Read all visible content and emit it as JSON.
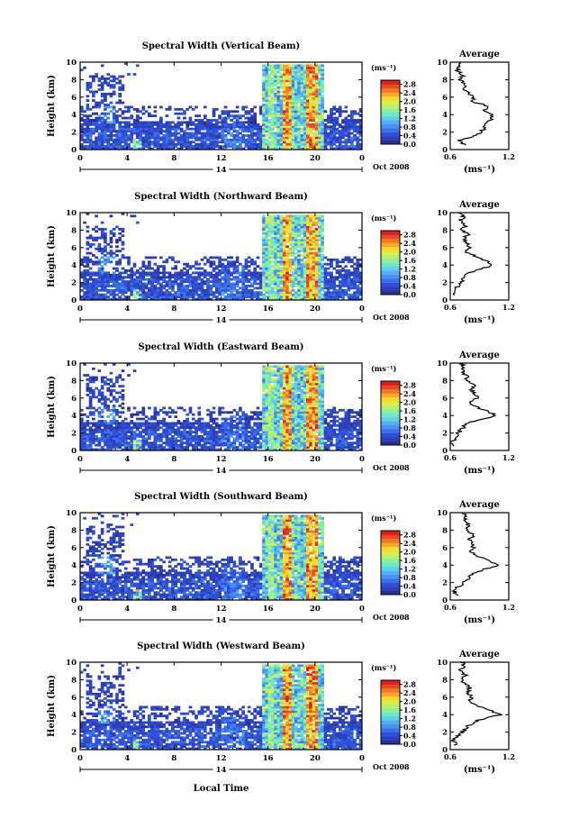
{
  "figure": {
    "date_label": "Oct 2008",
    "day_label": "14",
    "xlabel": "Local Time",
    "ylabel": "Height (km)",
    "units": "(ms⁻¹)",
    "avg_title": "Average",
    "avg_xlabel": "(ms⁻¹)"
  },
  "chart_data": [
    {
      "type": "heatmap",
      "title": "Spectral Width (Vertical Beam)",
      "x_ticks": [
        "0",
        "4",
        "8",
        "12",
        "16",
        "20",
        "0"
      ],
      "xlim": [
        0,
        24
      ],
      "y_ticks": [
        "0",
        "2",
        "4",
        "6",
        "8",
        "10"
      ],
      "ylim": [
        0,
        10
      ],
      "colorbar_ticks": [
        "0.0",
        "0.4",
        "0.8",
        "1.2",
        "1.6",
        "2.0",
        "2.4",
        "2.8"
      ],
      "colorbar_range": [
        0,
        3.0
      ],
      "colorbar_unit": "ms-1"
    },
    {
      "type": "line",
      "title": "Average",
      "x_ticks": [
        "0.6",
        "1.2"
      ],
      "xlim": [
        0.6,
        1.2
      ],
      "y_ticks": [
        "0",
        "2",
        "4",
        "6",
        "8",
        "10"
      ],
      "ylim": [
        0,
        10
      ],
      "height_km": [
        0.5,
        1,
        1.5,
        2,
        2.5,
        3,
        3.5,
        4,
        4.5,
        5,
        5.5,
        6,
        6.5,
        7,
        7.5,
        8,
        8.5,
        9,
        9.5,
        10
      ],
      "width_ms": [
        0.74,
        0.7,
        0.82,
        0.92,
        0.95,
        0.94,
        1.03,
        1.02,
        0.96,
        0.98,
        0.82,
        0.84,
        0.78,
        0.72,
        0.76,
        0.7,
        0.73,
        0.67,
        0.69,
        0.71
      ]
    },
    {
      "type": "heatmap",
      "title": "Spectral Width (Northward Beam)",
      "x_ticks": [
        "0",
        "4",
        "8",
        "12",
        "16",
        "20",
        "0"
      ],
      "xlim": [
        0,
        24
      ],
      "y_ticks": [
        "0",
        "2",
        "4",
        "6",
        "8",
        "10"
      ],
      "ylim": [
        0,
        10
      ],
      "colorbar_ticks": [
        "0.0",
        "0.4",
        "0.8",
        "1.2",
        "1.6",
        "2.0",
        "2.4",
        "2.8"
      ],
      "colorbar_range": [
        0,
        3.0
      ],
      "colorbar_unit": "ms-1"
    },
    {
      "type": "line",
      "title": "Average",
      "x_ticks": [
        "0.6",
        "1.2"
      ],
      "xlim": [
        0.6,
        1.2
      ],
      "y_ticks": [
        "0",
        "2",
        "4",
        "6",
        "8",
        "10"
      ],
      "ylim": [
        0,
        10
      ],
      "height_km": [
        0.5,
        1,
        1.5,
        2,
        2.5,
        3,
        3.5,
        4,
        4.5,
        5,
        5.5,
        6,
        6.5,
        7,
        7.5,
        8,
        8.5,
        9,
        9.5,
        10
      ],
      "width_ms": [
        0.66,
        0.64,
        0.67,
        0.72,
        0.74,
        0.76,
        0.9,
        1.05,
        0.96,
        0.87,
        0.76,
        0.8,
        0.77,
        0.74,
        0.78,
        0.72,
        0.76,
        0.7,
        0.73,
        0.7
      ]
    },
    {
      "type": "heatmap",
      "title": "Spectral Width (Eastward Beam)",
      "x_ticks": [
        "0",
        "4",
        "8",
        "12",
        "16",
        "20",
        "0"
      ],
      "xlim": [
        0,
        24
      ],
      "y_ticks": [
        "0",
        "2",
        "4",
        "6",
        "8",
        "10"
      ],
      "ylim": [
        0,
        10
      ],
      "colorbar_ticks": [
        "0.0",
        "0.4",
        "0.8",
        "1.2",
        "1.6",
        "2.0",
        "2.4",
        "2.8"
      ],
      "colorbar_range": [
        0,
        3.0
      ],
      "colorbar_unit": "ms-1"
    },
    {
      "type": "line",
      "title": "Average",
      "x_ticks": [
        "0.6",
        "1.2"
      ],
      "xlim": [
        0.6,
        1.2
      ],
      "y_ticks": [
        "0",
        "2",
        "4",
        "6",
        "8",
        "10"
      ],
      "ylim": [
        0,
        10
      ],
      "height_km": [
        0.5,
        1,
        1.5,
        2,
        2.5,
        3,
        3.5,
        4,
        4.5,
        5,
        5.5,
        6,
        6.5,
        7,
        7.5,
        8,
        8.5,
        9,
        9.5,
        10
      ],
      "width_ms": [
        0.64,
        0.62,
        0.66,
        0.68,
        0.72,
        0.76,
        0.88,
        1.08,
        0.98,
        0.86,
        0.8,
        0.88,
        0.84,
        0.82,
        0.84,
        0.76,
        0.78,
        0.72,
        0.74,
        0.72
      ]
    },
    {
      "type": "heatmap",
      "title": "Spectral Width (Southward Beam)",
      "x_ticks": [
        "0",
        "4",
        "8",
        "12",
        "16",
        "20",
        "0"
      ],
      "xlim": [
        0,
        24
      ],
      "y_ticks": [
        "0",
        "2",
        "4",
        "6",
        "8",
        "10"
      ],
      "ylim": [
        0,
        10
      ],
      "colorbar_ticks": [
        "0.0",
        "0.4",
        "0.8",
        "1.2",
        "1.6",
        "2.0",
        "2.4",
        "2.8"
      ],
      "colorbar_range": [
        0,
        3.0
      ],
      "colorbar_unit": "ms-1"
    },
    {
      "type": "line",
      "title": "Average",
      "x_ticks": [
        "0.6",
        "1.2"
      ],
      "xlim": [
        0.6,
        1.2
      ],
      "y_ticks": [
        "0",
        "2",
        "4",
        "6",
        "8",
        "10"
      ],
      "ylim": [
        0,
        10
      ],
      "height_km": [
        0.5,
        1,
        1.5,
        2,
        2.5,
        3,
        3.5,
        4,
        4.5,
        5,
        5.5,
        6,
        6.5,
        7,
        7.5,
        8,
        8.5,
        9,
        9.5,
        10
      ],
      "width_ms": [
        0.67,
        0.64,
        0.68,
        0.74,
        0.78,
        0.84,
        0.94,
        1.1,
        1.0,
        0.9,
        0.8,
        0.84,
        0.82,
        0.8,
        0.84,
        0.76,
        0.8,
        0.74,
        0.76,
        0.74
      ]
    },
    {
      "type": "heatmap",
      "title": "Spectral Width (Westward Beam)",
      "x_ticks": [
        "0",
        "4",
        "8",
        "12",
        "16",
        "20",
        "0"
      ],
      "xlim": [
        0,
        24
      ],
      "y_ticks": [
        "0",
        "2",
        "4",
        "6",
        "8",
        "10"
      ],
      "ylim": [
        0,
        10
      ],
      "colorbar_ticks": [
        "0.0",
        "0.4",
        "0.8",
        "1.2",
        "1.6",
        "2.0",
        "2.4",
        "2.8"
      ],
      "colorbar_range": [
        0,
        3.0
      ],
      "colorbar_unit": "ms-1"
    },
    {
      "type": "line",
      "title": "Average",
      "x_ticks": [
        "0.6",
        "1.2"
      ],
      "xlim": [
        0.6,
        1.2
      ],
      "y_ticks": [
        "0",
        "2",
        "4",
        "6",
        "8",
        "10"
      ],
      "ylim": [
        0,
        10
      ],
      "height_km": [
        0.5,
        1,
        1.5,
        2,
        2.5,
        3,
        3.5,
        4,
        4.5,
        5,
        5.5,
        6,
        6.5,
        7,
        7.5,
        8,
        8.5,
        9,
        9.5,
        10
      ],
      "width_ms": [
        0.66,
        0.63,
        0.66,
        0.72,
        0.76,
        0.82,
        0.92,
        1.12,
        1.0,
        0.88,
        0.78,
        0.82,
        0.78,
        0.8,
        0.76,
        0.72,
        0.76,
        0.7,
        0.74,
        0.72
      ]
    }
  ]
}
